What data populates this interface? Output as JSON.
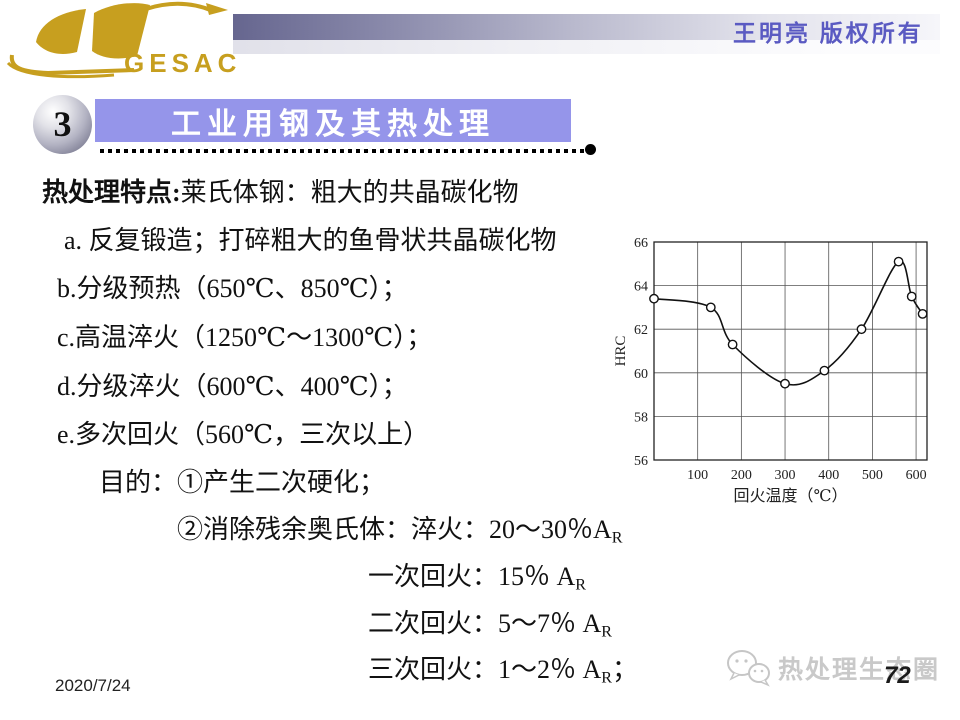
{
  "header": {
    "logo_text": "GESAC",
    "copyright": "王明亮 版权所有"
  },
  "title": {
    "number": "3",
    "text": "工业用钢及其热处理"
  },
  "body": {
    "line1_bold": "热处理特点:",
    "line1_rest": "莱氏体钢：粗大的共晶碳化物",
    "items": [
      {
        "text": "a. 反复锻造；打碎粗大的鱼骨状共晶碳化物"
      },
      {
        "text": "b.分级预热（650℃、850℃）；"
      },
      {
        "text": "c.高温淬火（1250℃～1300℃）；"
      },
      {
        "text": "d.分级淬火（600℃、400℃）；"
      },
      {
        "text": "e.多次回火（560℃，三次以上）"
      }
    ],
    "purpose_line": "目的：①产生二次硬化；",
    "ar_lines": [
      {
        "lead": "②消除残余奥氏体：淬火：20～30％",
        "symbol": "A",
        "sub": "R",
        "tail": ""
      },
      {
        "lead": "一次回火：15％ ",
        "symbol": "A",
        "sub": "R",
        "tail": ""
      },
      {
        "lead": "二次回火：5～7％ ",
        "symbol": "A",
        "sub": "R",
        "tail": ""
      },
      {
        "lead": "三次回火：1～2％ ",
        "symbol": "A",
        "sub": "R",
        "tail": "；"
      }
    ]
  },
  "chart_data": {
    "type": "line",
    "title": "",
    "xlabel": "回火温度（℃）",
    "ylabel": "HRC",
    "x": [
      0,
      130,
      180,
      300,
      390,
      475,
      560,
      590,
      615
    ],
    "y": [
      63.4,
      63.0,
      61.3,
      59.5,
      60.1,
      62.0,
      65.1,
      63.5,
      62.7
    ],
    "xlim": [
      0,
      625
    ],
    "ylim": [
      56,
      66
    ],
    "xticks": [
      100,
      200,
      300,
      400,
      500,
      600
    ],
    "yticks": [
      56,
      58,
      60,
      62,
      64,
      66
    ],
    "grid": true,
    "legend_position": "none",
    "marker": "open-circle"
  },
  "footer": {
    "date": "2020/7/24",
    "watermark": "热处理生态圈",
    "page": "72"
  },
  "colors": {
    "title_bar_bg": "#9595ea",
    "title_text": "#ffffff",
    "copyright_text": "#5a5ac2",
    "logo_gold": "#c79f1f",
    "watermark_gray": "#c9c9c9"
  }
}
